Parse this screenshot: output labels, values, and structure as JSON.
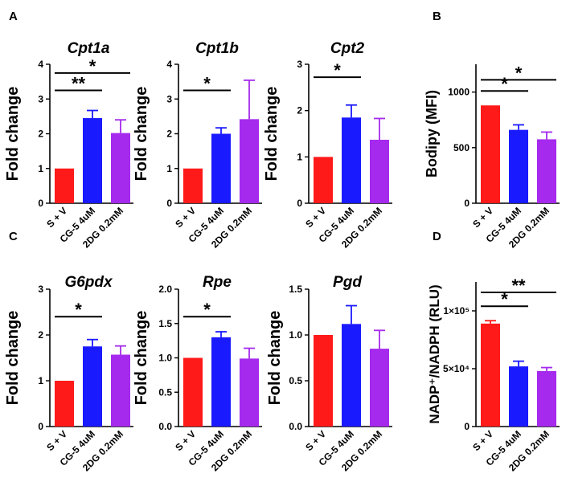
{
  "panel_labels": [
    "A",
    "B",
    "C",
    "D"
  ],
  "colors": {
    "bar1": "#ff1a1a",
    "bar2": "#1a1aff",
    "bar3": "#a52aed",
    "axis": "#000000"
  },
  "chart_data": [
    {
      "id": "cpt1a",
      "panel": "A",
      "type": "bar",
      "title": "Cpt1a",
      "title_italic": true,
      "ylabel": "Fold change",
      "categories": [
        "S + V",
        "CG-5 4uM",
        "2DG 0.2mM"
      ],
      "values": [
        1.0,
        2.45,
        2.02
      ],
      "errors": [
        0,
        0.22,
        0.38
      ],
      "ylim": [
        0,
        4
      ],
      "ticks": [
        0,
        1,
        2,
        3,
        4
      ],
      "tick_labels": [
        "0",
        "1",
        "2",
        "3",
        "4"
      ],
      "significance": [
        {
          "from": 0,
          "to": 1,
          "label": "**",
          "y": 3.25
        },
        {
          "from": 0,
          "to": 2,
          "label": "*",
          "y": 3.75
        }
      ]
    },
    {
      "id": "cpt1b",
      "panel": "A",
      "type": "bar",
      "title": "Cpt1b",
      "title_italic": true,
      "ylabel": "Fold change",
      "categories": [
        "S + V",
        "CG-5 4uM",
        "2DG 0.2mM"
      ],
      "values": [
        1.0,
        2.0,
        2.42
      ],
      "errors": [
        0,
        0.17,
        1.12
      ],
      "ylim": [
        0,
        4
      ],
      "ticks": [
        0,
        1,
        2,
        3,
        4
      ],
      "tick_labels": [
        "0",
        "1",
        "2",
        "3",
        "4"
      ],
      "significance": [
        {
          "from": 0,
          "to": 1,
          "label": "*",
          "y": 3.25
        }
      ]
    },
    {
      "id": "cpt2",
      "panel": "A",
      "type": "bar",
      "title": "Cpt2",
      "title_italic": true,
      "ylabel": "Fold change",
      "categories": [
        "S + V",
        "CG-5 4uM",
        "2DG 0.2mM"
      ],
      "values": [
        1.0,
        1.85,
        1.37
      ],
      "errors": [
        0,
        0.27,
        0.46
      ],
      "ylim": [
        0,
        3
      ],
      "ticks": [
        0,
        1,
        2,
        3
      ],
      "tick_labels": [
        "0",
        "1",
        "2",
        "3"
      ],
      "significance": [
        {
          "from": 0,
          "to": 1,
          "label": "*",
          "y": 2.72
        }
      ]
    },
    {
      "id": "bodipy",
      "panel": "B",
      "type": "bar",
      "title": "",
      "title_italic": false,
      "ylabel": "Bodipy (MFI)",
      "categories": [
        "S + V",
        "CG-5 4uM",
        "2DG 0.2mM"
      ],
      "values": [
        880,
        660,
        575
      ],
      "errors": [
        0,
        45,
        65
      ],
      "ylim": [
        0,
        1250
      ],
      "ticks": [
        0,
        500,
        1000
      ],
      "tick_labels": [
        "0",
        "500",
        "1000"
      ],
      "significance": [
        {
          "from": 0,
          "to": 1,
          "label": "*",
          "y": 1010
        },
        {
          "from": 0,
          "to": 2,
          "label": "*",
          "y": 1110
        }
      ]
    },
    {
      "id": "g6pdx",
      "panel": "C",
      "type": "bar",
      "title": "G6pdx",
      "title_italic": true,
      "ylabel": "Fold change",
      "categories": [
        "S + V",
        "CG-5 4uM",
        "2DG 0.2mM"
      ],
      "values": [
        1.0,
        1.75,
        1.57
      ],
      "errors": [
        0,
        0.15,
        0.19
      ],
      "ylim": [
        0,
        3
      ],
      "ticks": [
        0,
        1,
        2,
        3
      ],
      "tick_labels": [
        "0",
        "1",
        "2",
        "3"
      ],
      "significance": [
        {
          "from": 0,
          "to": 1,
          "label": "*",
          "y": 2.4
        }
      ]
    },
    {
      "id": "rpe",
      "panel": "C",
      "type": "bar",
      "title": "Rpe",
      "title_italic": true,
      "ylabel": "Fold change",
      "categories": [
        "S + V",
        "CG-5 4uM",
        "2DG 0.2mM"
      ],
      "values": [
        1.0,
        1.3,
        0.99
      ],
      "errors": [
        0,
        0.08,
        0.15
      ],
      "ylim": [
        0,
        2.0
      ],
      "ticks": [
        0,
        0.5,
        1.0,
        1.5,
        2.0
      ],
      "tick_labels": [
        "0.0",
        "0.5",
        "1.0",
        "1.5",
        "2.0"
      ],
      "significance": [
        {
          "from": 0,
          "to": 1,
          "label": "*",
          "y": 1.6
        }
      ]
    },
    {
      "id": "pgd",
      "panel": "C",
      "type": "bar",
      "title": "Pgd",
      "title_italic": true,
      "ylabel": "Fold change",
      "categories": [
        "S + V",
        "CG-5 4uM",
        "2DG 0.2mM"
      ],
      "values": [
        1.0,
        1.12,
        0.85
      ],
      "errors": [
        0,
        0.2,
        0.2
      ],
      "ylim": [
        0,
        1.5
      ],
      "ticks": [
        0,
        0.5,
        1.0,
        1.5
      ],
      "tick_labels": [
        "0.0",
        "0.5",
        "1.0",
        "1.5"
      ],
      "significance": []
    },
    {
      "id": "nadp",
      "panel": "D",
      "type": "bar",
      "title": "",
      "title_italic": false,
      "ylabel": "NADP⁺/NADPH (RLU)",
      "categories": [
        "S + V",
        "CG-5 4uM",
        "2DG 0.2mM"
      ],
      "values": [
        89000,
        52000,
        48000
      ],
      "errors": [
        2500,
        4500,
        3000
      ],
      "ylim": [
        0,
        125000
      ],
      "ticks": [
        0,
        50000,
        100000
      ],
      "tick_labels": [
        "0",
        "5×10⁴",
        "1×10⁵"
      ],
      "significance": [
        {
          "from": 0,
          "to": 1,
          "label": "*",
          "y": 104000
        },
        {
          "from": 0,
          "to": 2,
          "label": "**",
          "y": 116000
        }
      ]
    }
  ]
}
